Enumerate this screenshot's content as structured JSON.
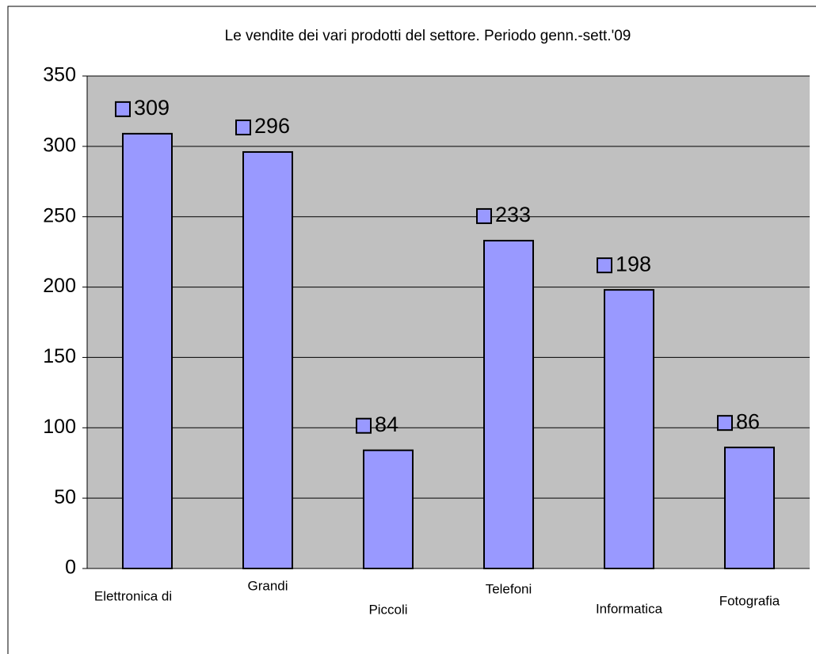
{
  "chart_data": {
    "type": "bar",
    "title": "Le vendite dei vari prodotti del settore. Periodo genn.-sett.'09",
    "categories": [
      "Elettronica di",
      "Grandi",
      "Piccoli",
      "Telefoni",
      "Informatica",
      "Fotografia"
    ],
    "values": [
      309,
      296,
      84,
      233,
      198,
      86
    ],
    "color": "#9999ff",
    "ylim": [
      0,
      350
    ],
    "yticks": [
      0,
      50,
      100,
      150,
      200,
      250,
      300,
      350
    ],
    "grid": true
  }
}
